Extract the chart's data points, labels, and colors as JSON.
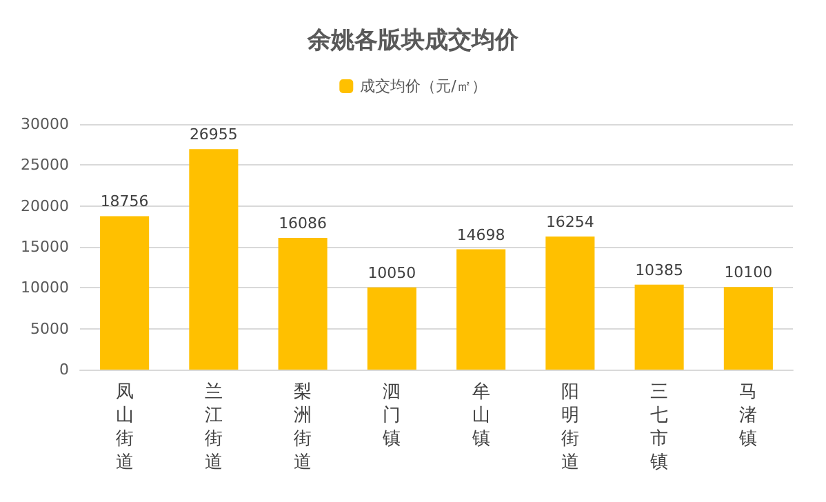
{
  "chart_data": {
    "type": "bar",
    "title": "余姚各版块成交均价",
    "categories": [
      "凤山街道",
      "兰江街道",
      "梨洲街道",
      "泗门镇",
      "牟山镇",
      "阳明街道",
      "三七市镇",
      "马渚镇"
    ],
    "series": [
      {
        "name": "成交均价（元/㎡）",
        "color": "#ffc000",
        "values": [
          18756,
          26955,
          16086,
          10050,
          14698,
          16254,
          10385,
          10100
        ]
      }
    ],
    "ylim": [
      0,
      30000
    ],
    "yticks": [
      0,
      5000,
      10000,
      15000,
      20000,
      25000,
      30000
    ],
    "grid": "y",
    "legend": "top",
    "data_labels": true
  }
}
